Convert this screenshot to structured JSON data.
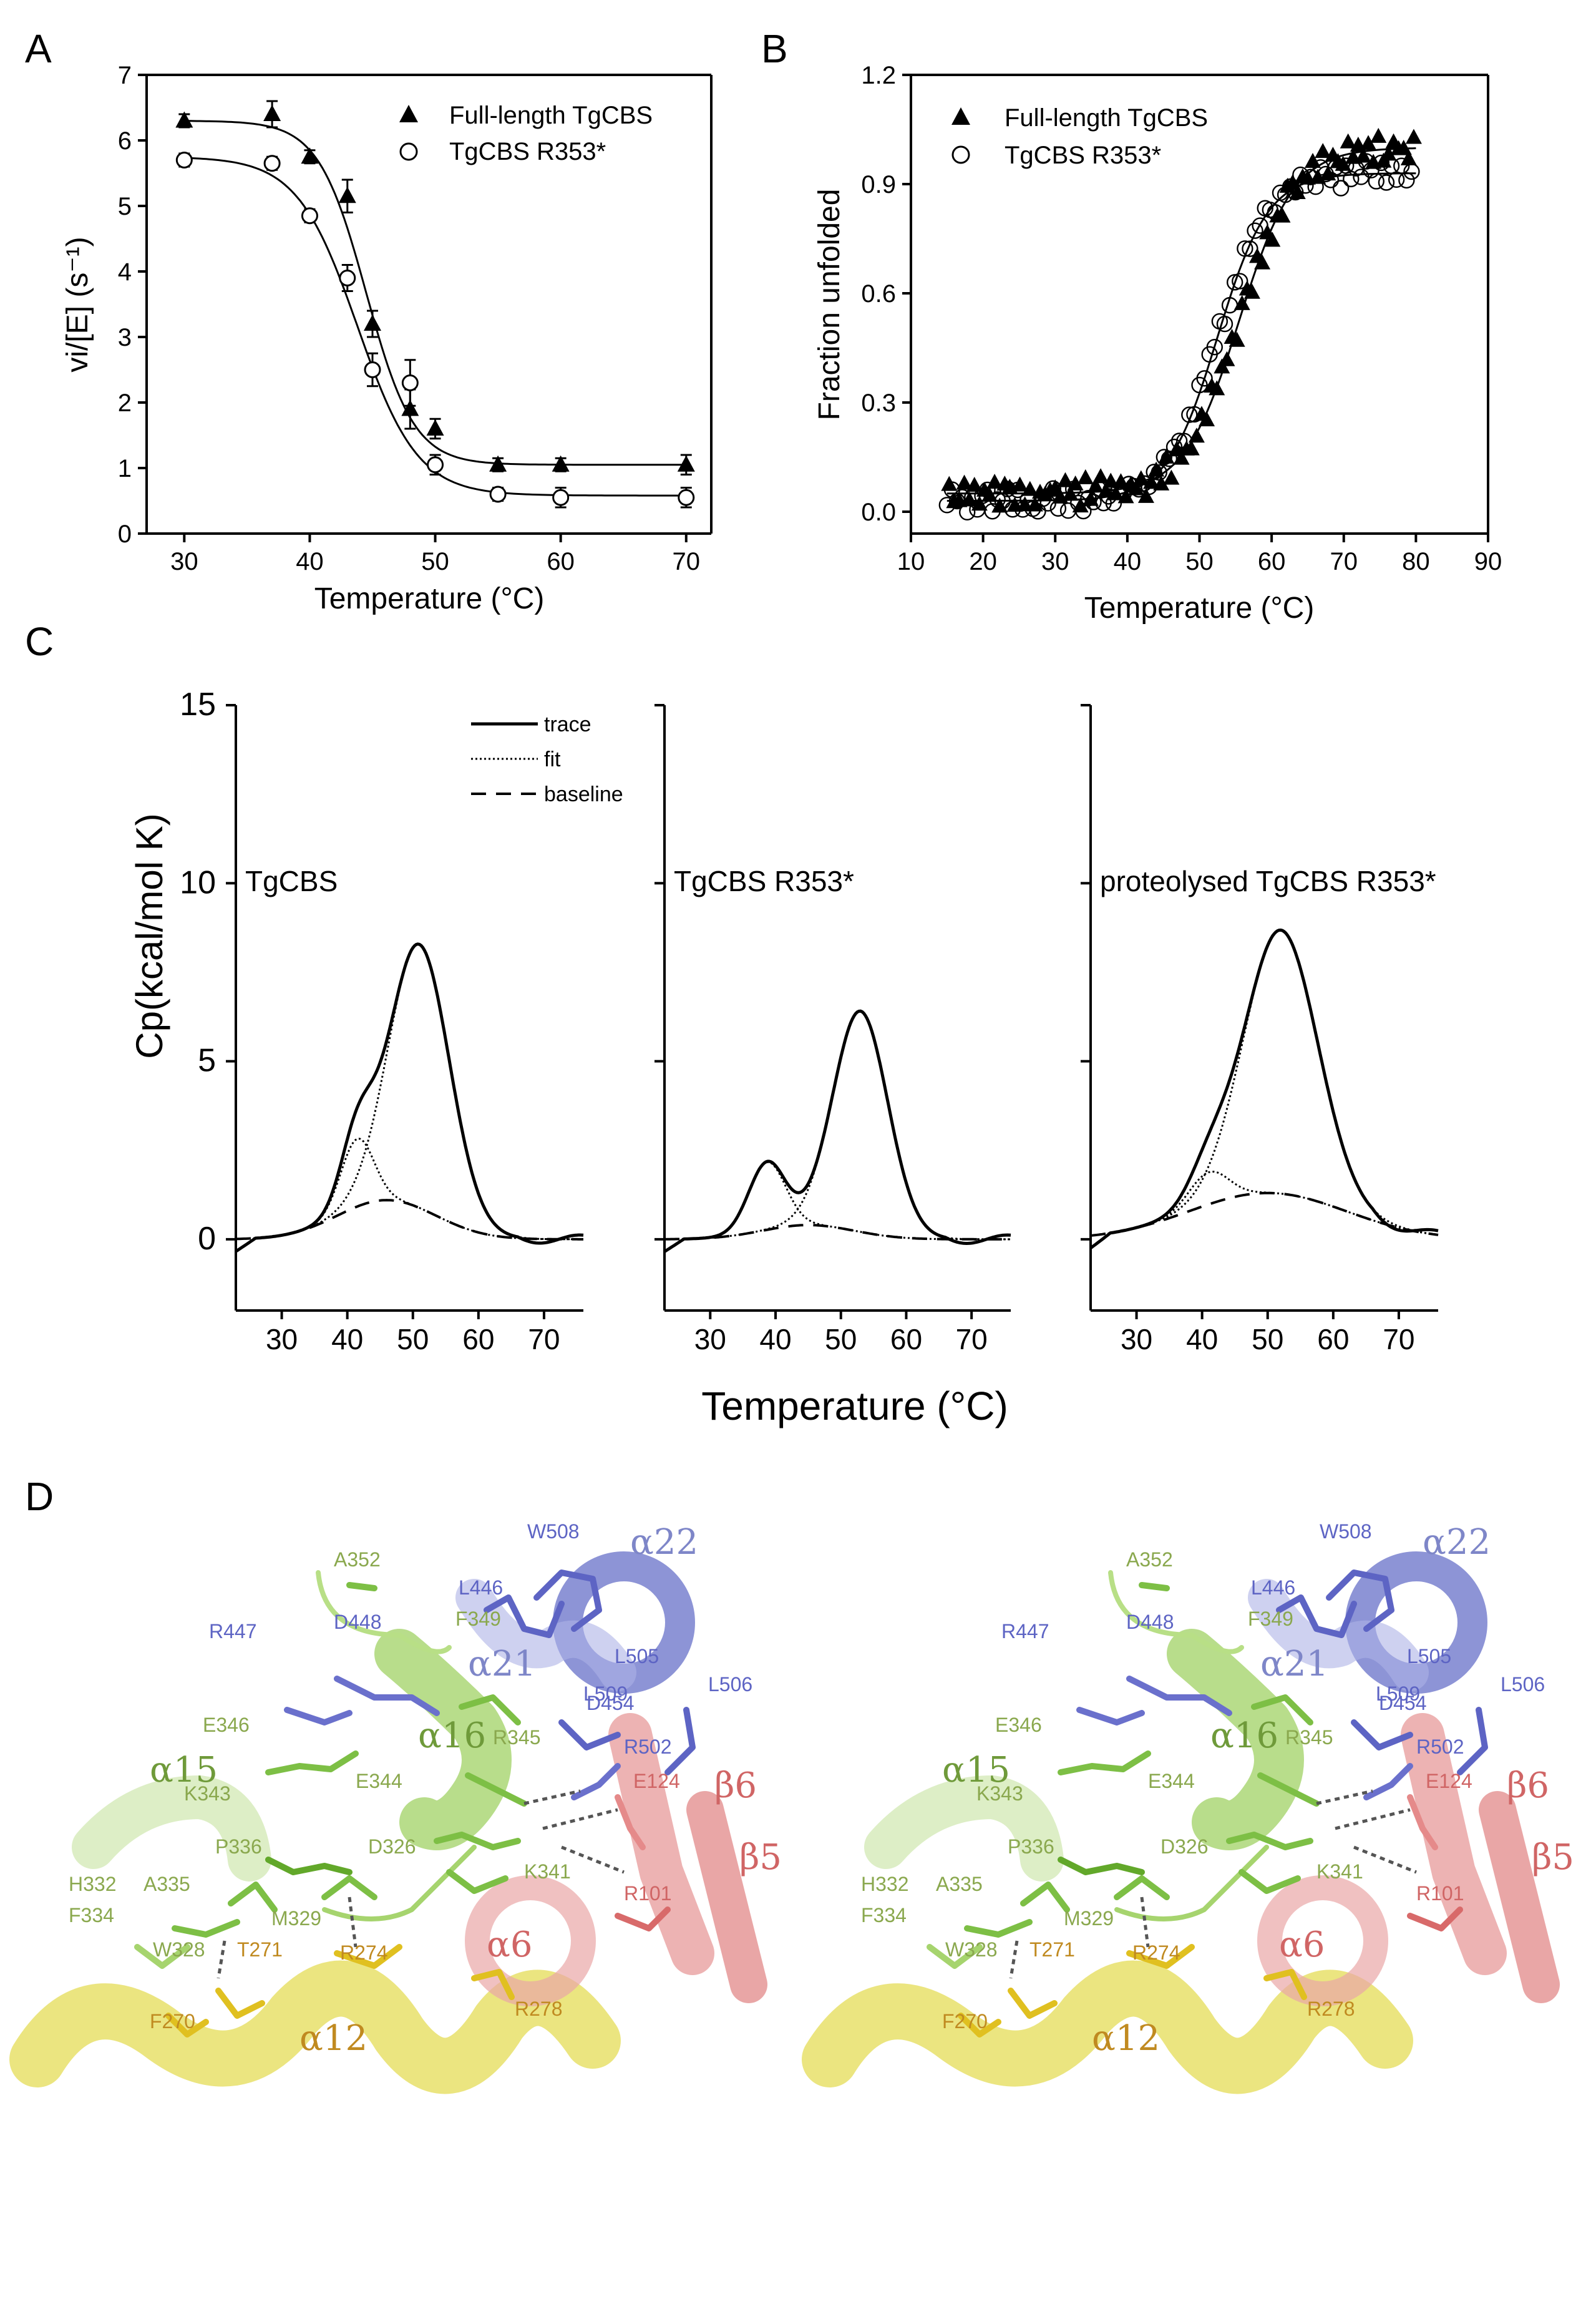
{
  "panel_labels": {
    "A": "A",
    "B": "B",
    "C": "C",
    "D": "D"
  },
  "chart_data": [
    {
      "panel": "A",
      "type": "scatter",
      "xlabel": "Temperature (°C)",
      "ylabel": "vi/[E] (s⁻¹)",
      "xlim": [
        27,
        72
      ],
      "ylim": [
        0,
        7
      ],
      "xticks": [
        30,
        40,
        50,
        60,
        70
      ],
      "yticks": [
        0,
        1,
        2,
        3,
        4,
        5,
        6,
        7
      ],
      "legend_position": "top-right",
      "series": [
        {
          "name": "Full-length TgCBS",
          "marker": "filled-triangle",
          "x": [
            30,
            37,
            40,
            43,
            45,
            48,
            50,
            55,
            60,
            70
          ],
          "y": [
            6.3,
            6.4,
            5.75,
            5.15,
            3.2,
            1.9,
            1.6,
            1.05,
            1.05,
            1.05
          ],
          "err": [
            0.1,
            0.2,
            0.1,
            0.25,
            0.2,
            0.3,
            0.15,
            0.1,
            0.1,
            0.15
          ],
          "fit": {
            "top": 6.3,
            "bottom": 1.05,
            "tm": 44.5,
            "slope": 1.9
          }
        },
        {
          "name": "TgCBS R353*",
          "marker": "open-circle",
          "x": [
            30,
            37,
            40,
            43,
            45,
            48,
            50,
            55,
            60,
            70
          ],
          "y": [
            5.7,
            5.65,
            4.85,
            3.9,
            2.5,
            2.3,
            1.05,
            0.6,
            0.55,
            0.55
          ],
          "err": [
            0.1,
            0.1,
            0.1,
            0.2,
            0.25,
            0.35,
            0.15,
            0.1,
            0.15,
            0.15
          ],
          "fit": {
            "top": 5.75,
            "bottom": 0.58,
            "tm": 43.8,
            "slope": 2.4
          }
        }
      ]
    },
    {
      "panel": "B",
      "type": "scatter",
      "xlabel": "Temperature (°C)",
      "ylabel": "Fraction unfolded",
      "xlim": [
        10,
        90
      ],
      "ylim": [
        -0.06,
        1.2
      ],
      "xticks": [
        10,
        20,
        30,
        40,
        50,
        60,
        70,
        80,
        90
      ],
      "yticks": [
        0.0,
        0.3,
        0.6,
        0.9,
        1.2
      ],
      "ytick_labels": [
        "0.0",
        "0.3",
        "0.6",
        "0.9",
        "1.2"
      ],
      "legend_position": "top-left",
      "series": [
        {
          "name": "Full-length TgCBS",
          "marker": "filled-triangle",
          "range": [
            15,
            80
          ],
          "fit": {
            "low": 0.05,
            "high": 1.0,
            "tm": 55.5,
            "slope": 3.8
          }
        },
        {
          "name": "TgCBS R353*",
          "marker": "open-circle",
          "range": [
            15,
            80
          ],
          "fit": {
            "low": 0.03,
            "high": 0.93,
            "tm": 52.5,
            "slope": 3.5
          }
        }
      ]
    },
    {
      "panel": "C",
      "type": "line",
      "xlabel": "Temperature (°C)",
      "ylabel": "Cp(kcal/mol K)",
      "xlim": [
        23,
        76
      ],
      "ylim": [
        -2,
        15
      ],
      "xticks": [
        30,
        40,
        50,
        60,
        70
      ],
      "yticks": [
        0,
        5,
        10,
        15
      ],
      "legend_entries": [
        "trace",
        "fit",
        "baseline"
      ],
      "subplots": [
        {
          "label": "TgCBS",
          "peaks": [
            {
              "center": 41.5,
              "height": 1.9,
              "width": 2.5
            },
            {
              "center": 51,
              "height": 7.4,
              "width": 4.6
            }
          ],
          "baseline": {
            "center": 46,
            "height": 1.1,
            "width": 7.5
          }
        },
        {
          "label": "TgCBS R353*",
          "peaks": [
            {
              "center": 38.7,
              "height": 1.9,
              "width": 2.8
            },
            {
              "center": 53,
              "height": 6.2,
              "width": 4.2
            }
          ],
          "baseline": {
            "center": 45,
            "height": 0.4,
            "width": 7
          }
        },
        {
          "label": "proteolysed TgCBS R353*",
          "peaks": [
            {
              "center": 41,
              "height": 0.9,
              "width": 3
            },
            {
              "center": 52,
              "height": 7.4,
              "width": 5.6
            }
          ],
          "baseline": {
            "center": 50,
            "height": 1.3,
            "width": 12
          }
        }
      ]
    }
  ],
  "structure": {
    "residue_labels": [
      {
        "text": "A352",
        "color": "#8aa84e"
      },
      {
        "text": "L446",
        "color": "#5d64c4"
      },
      {
        "text": "W508",
        "color": "#5d64c4"
      },
      {
        "text": "L505",
        "color": "#5d64c4"
      },
      {
        "text": "F349",
        "color": "#8aa84e"
      },
      {
        "text": "D448",
        "color": "#5d64c4"
      },
      {
        "text": "R447",
        "color": "#5d64c4"
      },
      {
        "text": "L509",
        "color": "#5d64c4"
      },
      {
        "text": "L506",
        "color": "#5d64c4"
      },
      {
        "text": "E346",
        "color": "#8aa84e"
      },
      {
        "text": "D454",
        "color": "#5d64c4"
      },
      {
        "text": "R345",
        "color": "#8aa84e"
      },
      {
        "text": "R502",
        "color": "#5d64c4"
      },
      {
        "text": "E124",
        "color": "#d06565"
      },
      {
        "text": "K343",
        "color": "#8aa84e"
      },
      {
        "text": "E344",
        "color": "#8aa84e"
      },
      {
        "text": "P336",
        "color": "#8aa84e"
      },
      {
        "text": "D326",
        "color": "#8aa84e"
      },
      {
        "text": "K341",
        "color": "#8aa84e"
      },
      {
        "text": "R101",
        "color": "#d06565"
      },
      {
        "text": "H332",
        "color": "#8aa84e"
      },
      {
        "text": "A335",
        "color": "#8aa84e"
      },
      {
        "text": "F334",
        "color": "#8aa84e"
      },
      {
        "text": "M329",
        "color": "#8aa84e"
      },
      {
        "text": "W328",
        "color": "#8aa84e"
      },
      {
        "text": "T271",
        "color": "#c08a20"
      },
      {
        "text": "R274",
        "color": "#c08a20"
      },
      {
        "text": "R278",
        "color": "#c08a20"
      },
      {
        "text": "F270",
        "color": "#c08a20"
      }
    ],
    "ss_labels": [
      {
        "text": "α22",
        "color": "#7e86c8"
      },
      {
        "text": "α21",
        "color": "#7e86c8"
      },
      {
        "text": "α16",
        "color": "#6f9a3a"
      },
      {
        "text": "α15",
        "color": "#6f9a3a"
      },
      {
        "text": "β6",
        "color": "#d06565"
      },
      {
        "text": "β5",
        "color": "#d06565"
      },
      {
        "text": "α6",
        "color": "#d06565"
      },
      {
        "text": "α12",
        "color": "#c08a20"
      }
    ]
  }
}
